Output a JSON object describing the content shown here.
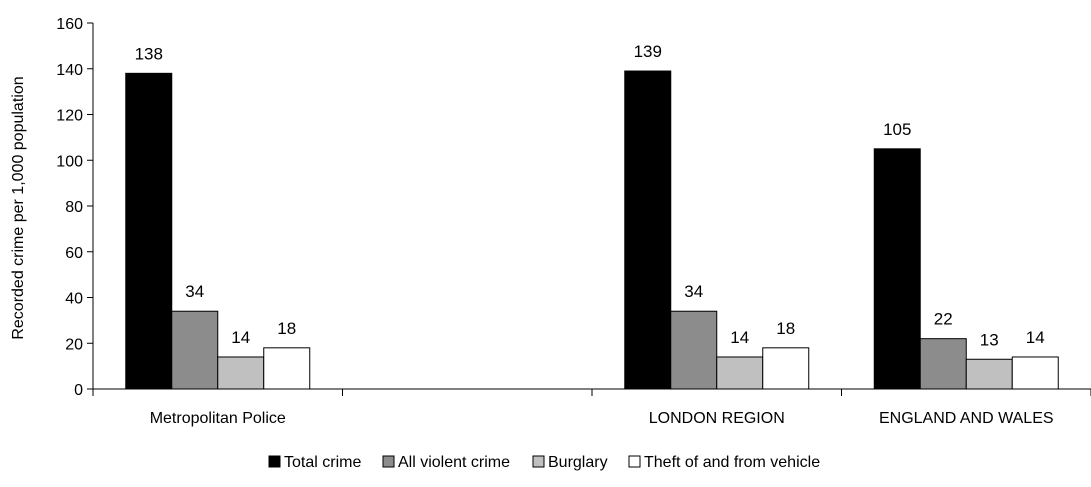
{
  "chart_data": {
    "type": "bar",
    "title": "",
    "xlabel": "",
    "ylabel": "Recorded crime per 1,000 population",
    "ylim": [
      0,
      160
    ],
    "yticks": [
      "0",
      "20",
      "40",
      "60",
      "80",
      "100",
      "120",
      "140",
      "160"
    ],
    "categories": [
      "Metropolitan Police",
      "",
      "LONDON REGION",
      "ENGLAND AND WALES"
    ],
    "series": [
      {
        "name": "Total crime",
        "color": "#000000",
        "values": [
          138,
          null,
          139,
          105
        ]
      },
      {
        "name": "All violent crime",
        "color": "#8c8c8c",
        "values": [
          34,
          null,
          34,
          22
        ]
      },
      {
        "name": "Burglary",
        "color": "#c0c0c0",
        "values": [
          14,
          null,
          14,
          13
        ]
      },
      {
        "name": "Theft of and from vehicle",
        "color": "#ffffff",
        "values": [
          18,
          null,
          18,
          14
        ]
      }
    ],
    "grid": false,
    "legend_position": "bottom"
  }
}
